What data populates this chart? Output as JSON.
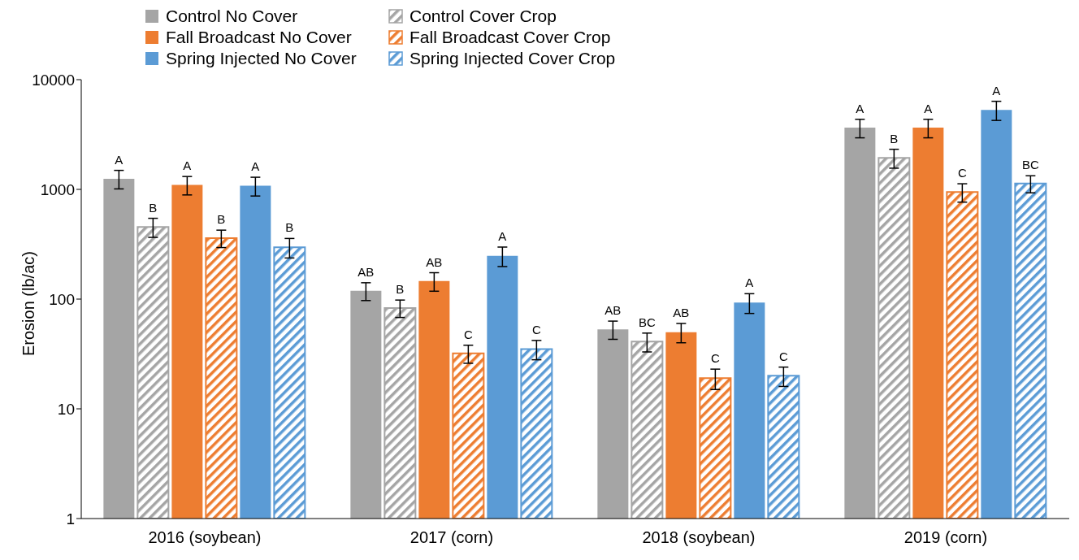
{
  "chart_data": {
    "type": "bar",
    "ylabel": "Erosion (lb/ac)",
    "categories": [
      "2016 (soybean)",
      "2017 (corn)",
      "2018 (soybean)",
      "2019 (corn)"
    ],
    "series": [
      {
        "name": "Control No Cover",
        "color": "#a5a5a5",
        "values": [
          1250,
          119,
          53,
          3650
        ],
        "errors": [
          240,
          22,
          10,
          700
        ],
        "value_labels": [
          "A",
          "AB",
          "AB",
          "A"
        ]
      },
      {
        "name": "Control Cover Crop",
        "color": "#a5a5a5",
        "values": [
          455,
          83,
          41,
          1940
        ],
        "errors": [
          90,
          15,
          8,
          380
        ],
        "value_labels": [
          "B",
          "B",
          "BC",
          "B"
        ]
      },
      {
        "name": "Fall Broadcast No Cover",
        "color": "#ed7d31",
        "values": [
          1100,
          146,
          50,
          3650
        ],
        "errors": [
          210,
          28,
          10,
          700
        ],
        "value_labels": [
          "A",
          "AB",
          "AB",
          "A"
        ]
      },
      {
        "name": "Fall Broadcast Cover Crop",
        "color": "#ed7d31",
        "values": [
          360,
          32,
          19,
          945
        ],
        "errors": [
          65,
          6,
          4,
          180
        ],
        "value_labels": [
          "B",
          "C",
          "C",
          "C"
        ]
      },
      {
        "name": "Spring Injected No Cover",
        "color": "#5b9bd5",
        "values": [
          1080,
          248,
          93,
          5300
        ],
        "errors": [
          210,
          50,
          19,
          1050
        ],
        "value_labels": [
          "A",
          "A",
          "A",
          "A"
        ]
      },
      {
        "name": "Spring Injected Cover Crop",
        "color": "#5b9bd5",
        "values": [
          297,
          35,
          20,
          1130
        ],
        "errors": [
          60,
          7,
          4,
          200
        ],
        "value_labels": [
          "B",
          "C",
          "C",
          "BC"
        ]
      }
    ],
    "log": "y",
    "ylim": [
      1,
      10000
    ],
    "yticks": [
      1,
      10,
      100,
      1000,
      10000
    ],
    "grid": false,
    "legend": "top left"
  }
}
